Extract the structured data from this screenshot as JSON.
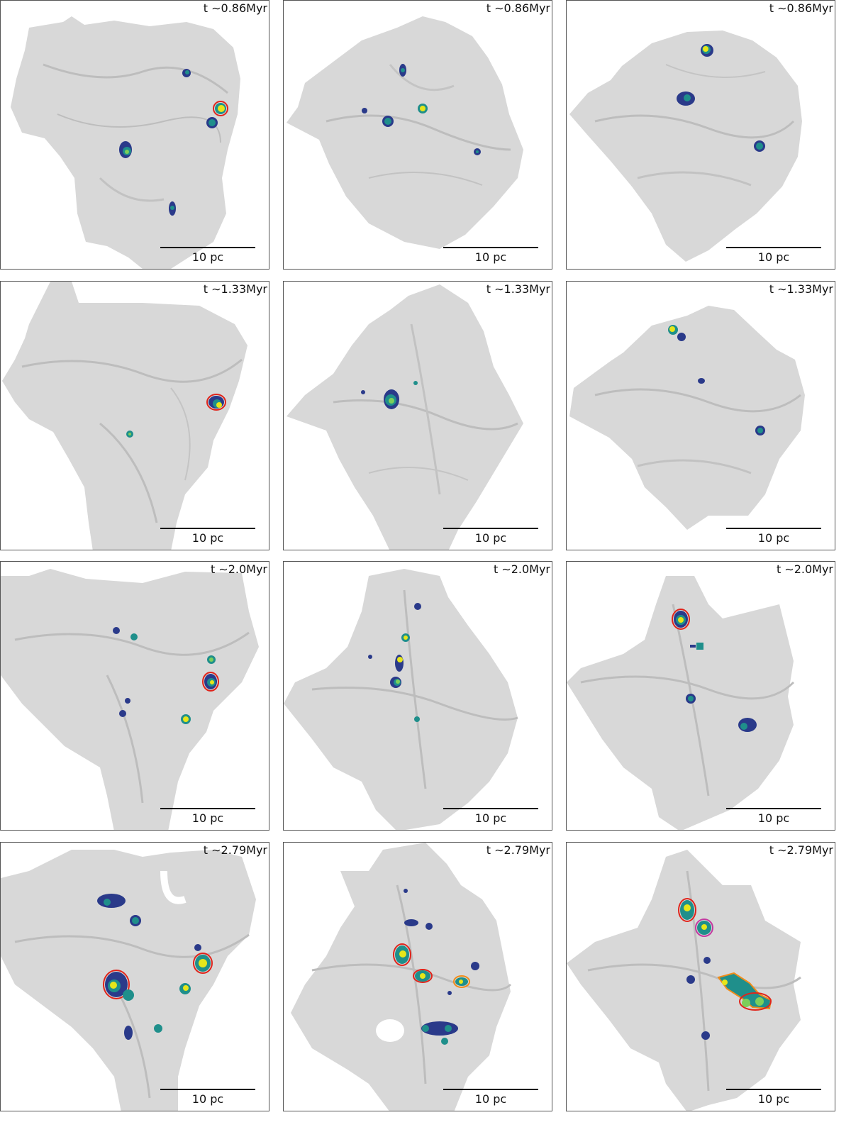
{
  "figure": {
    "scale_label": "10 pc",
    "rows": [
      {
        "time_label": "t ∼0.86Myr",
        "panels": [
          "p1",
          "p2",
          "p3"
        ]
      },
      {
        "time_label": "t ∼1.33Myr",
        "panels": [
          "p4",
          "p5",
          "p6"
        ]
      },
      {
        "time_label": "t ∼2.0Myr",
        "panels": [
          "p7",
          "p8",
          "p9"
        ]
      },
      {
        "time_label": "t ∼2.79Myr",
        "panels": [
          "p10",
          "p11",
          "p12"
        ]
      }
    ]
  },
  "colors": {
    "cloud_fill": "#d6d6d6",
    "cloud_filament": "#b9b9b9",
    "clump_outer": "#2a3a8a",
    "clump_mid": "#1f8f8b",
    "clump_core": "#e6e61a",
    "contour_red": "#e0241b",
    "contour_orange": "#f08c1a",
    "contour_magenta": "#c43aa0"
  }
}
